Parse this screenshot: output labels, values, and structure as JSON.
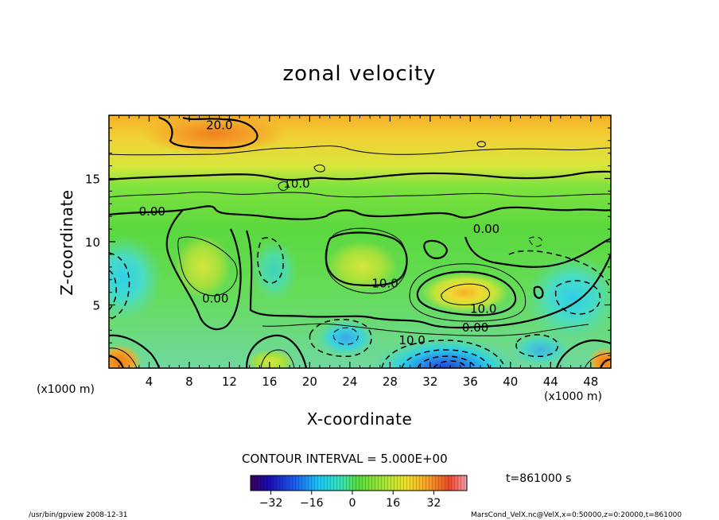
{
  "chart_data": {
    "type": "contour",
    "title": "zonal velocity",
    "xlabel": "X-coordinate",
    "ylabel": "Z-coordinate",
    "x_unit_label": "(x1000 m)",
    "x_unit_label_right": "(x1000 m)",
    "xlim": [
      0,
      50
    ],
    "ylim": [
      0,
      20
    ],
    "x_ticks": [
      4,
      8,
      12,
      16,
      20,
      24,
      28,
      32,
      36,
      40,
      44,
      48
    ],
    "y_ticks": [
      5,
      10,
      15
    ],
    "contour_interval_text": "CONTOUR INTERVAL = 5.000E+00",
    "colorbar": {
      "ticks": [
        -32,
        -16,
        0,
        16,
        32
      ],
      "range": [
        -40,
        45
      ]
    },
    "contour_labels": [
      {
        "text": "20.0",
        "x": 11,
        "z": 19.2
      },
      {
        "text": "10.0",
        "x": 18.7,
        "z": 14.6
      },
      {
        "text": "0.00",
        "x": 4.3,
        "z": 12.4
      },
      {
        "text": "0.00",
        "x": 37.6,
        "z": 11.0
      },
      {
        "text": "10.0",
        "x": 27.5,
        "z": 6.7
      },
      {
        "text": "0.00",
        "x": 10.6,
        "z": 5.5
      },
      {
        "text": "10.0",
        "x": 37.3,
        "z": 4.7
      },
      {
        "text": "0.00",
        "x": 36.5,
        "z": 3.2
      },
      {
        "text": "10.0",
        "x": 30.2,
        "z": 2.2
      }
    ],
    "field_features": [
      {
        "kind": "max",
        "x": 11,
        "z": 18.6,
        "value": 24
      },
      {
        "kind": "max",
        "x": 34.5,
        "z": 5.8,
        "value": 20
      },
      {
        "kind": "max",
        "x": 25,
        "z": 8.5,
        "value": 15
      },
      {
        "kind": "max",
        "x": 9,
        "z": 8.5,
        "value": 13
      },
      {
        "kind": "min",
        "x": 34,
        "z": 0.3,
        "value": -40
      },
      {
        "kind": "min",
        "x": 23,
        "z": 2.8,
        "value": -12
      },
      {
        "kind": "min",
        "x": 0.5,
        "z": 7.5,
        "value": -12
      },
      {
        "kind": "min",
        "x": 47,
        "z": 6,
        "value": -14
      }
    ]
  },
  "info": {
    "time_label": "t=861000 s",
    "footer_left": "/usr/bin/gpview   2008-12-31",
    "footer_right": "MarsCond_VelX.nc@VelX,x=0:50000,z=0:20000,t=861000"
  }
}
